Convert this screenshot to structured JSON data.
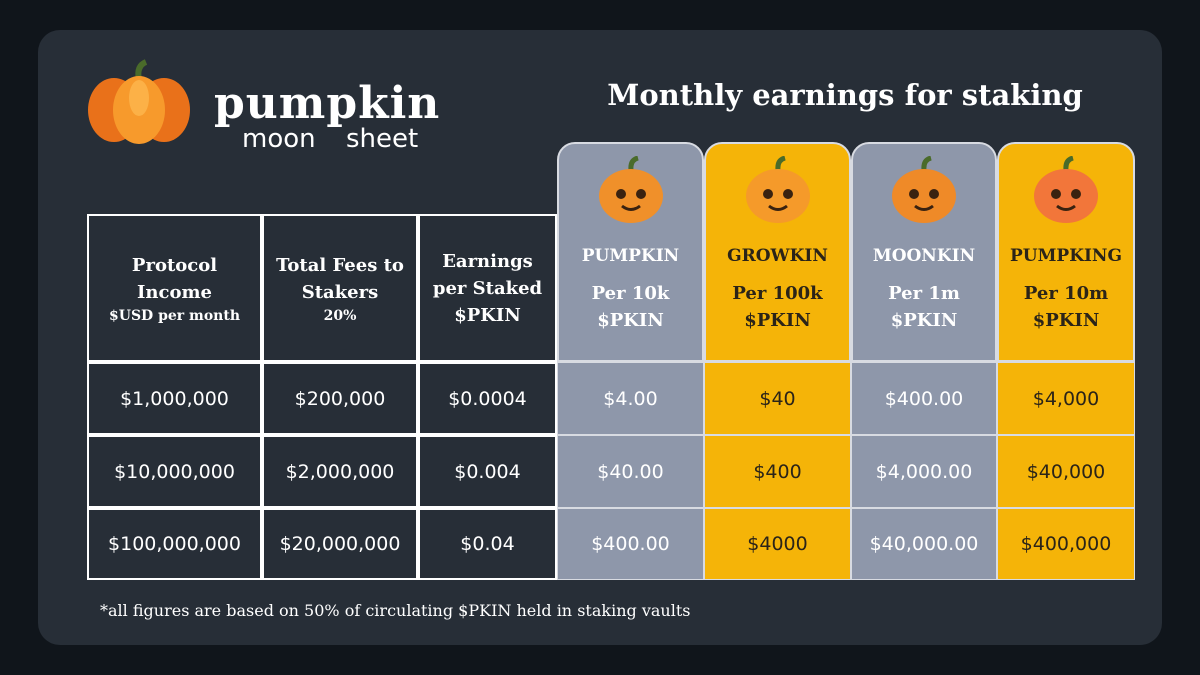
{
  "logo": {
    "word": "pumpkin",
    "sub1": "moon",
    "sub2": "sheet"
  },
  "title": "Monthly earnings for staking",
  "table": {
    "headers": [
      {
        "name": "Protocol Income",
        "note": "$USD per month"
      },
      {
        "name": "Total Fees to Stakers",
        "note": "20%"
      },
      {
        "name": "Earnings per Staked $PKIN"
      },
      {
        "name": "PUMPKIN",
        "note": "Per 10k $PKIN"
      },
      {
        "name": "GROWKIN",
        "note": "Per 100k $PKIN"
      },
      {
        "name": "MOONKIN",
        "note": "Per 1m $PKIN"
      },
      {
        "name": "PUMPKING",
        "note": "Per 10m $PKIN"
      }
    ],
    "rows": [
      [
        "$1,000,000",
        "$200,000",
        "$0.0004",
        "$4.00",
        "$40",
        "$400.00",
        "$4,000"
      ],
      [
        "$10,000,000",
        "$2,000,000",
        "$0.004",
        "$40.00",
        "$400",
        "$4,000.00",
        "$40,000"
      ],
      [
        "$100,000,000",
        "$20,000,000",
        "$0.04",
        "$400.00",
        "$4000",
        "$40,000.00",
        "$400,000"
      ]
    ]
  },
  "footnote": "*all figures are based on 50% of circulating $PKIN held in staking vaults"
}
